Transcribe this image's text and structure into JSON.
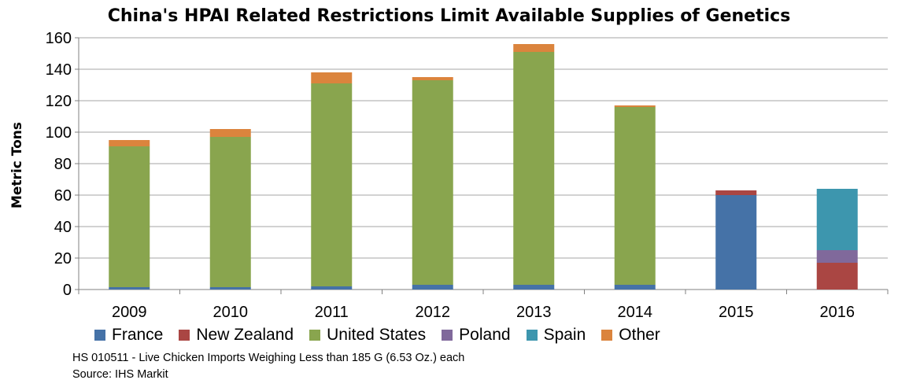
{
  "chart_data": {
    "type": "bar",
    "stacked": true,
    "title": "China's HPAI Related Restrictions Limit Available Supplies of Genetics",
    "ylabel": "Metric Tons",
    "xlabel": "",
    "ylim": [
      0,
      160
    ],
    "yticks": [
      0,
      20,
      40,
      60,
      80,
      100,
      120,
      140,
      160
    ],
    "grid": true,
    "legend_position": "bottom",
    "categories": [
      "2009",
      "2010",
      "2011",
      "2012",
      "2013",
      "2014",
      "2015",
      "2016"
    ],
    "series": [
      {
        "name": "France",
        "color": "#4572A7",
        "values": [
          1.5,
          1.5,
          2,
          3,
          3,
          3,
          60,
          0
        ]
      },
      {
        "name": "New Zealand",
        "color": "#AA4643",
        "values": [
          0,
          0,
          0,
          0,
          0,
          0,
          3,
          17
        ]
      },
      {
        "name": "United States",
        "color": "#89A54E",
        "values": [
          89.5,
          95.5,
          129,
          130,
          148,
          113,
          0,
          0
        ]
      },
      {
        "name": "Poland",
        "color": "#80699B",
        "values": [
          0,
          0,
          0,
          0,
          0,
          0,
          0,
          8
        ]
      },
      {
        "name": "Spain",
        "color": "#3D96AE",
        "values": [
          0,
          0,
          0,
          0,
          0,
          0,
          0,
          39
        ]
      },
      {
        "name": "Other",
        "color": "#DB843D",
        "values": [
          4,
          5,
          7,
          2,
          5,
          1,
          0,
          0
        ]
      }
    ]
  },
  "footnote": "HS 010511 - Live Chicken Imports Weighing Less than 185 G (6.53 Oz.) each",
  "source": "Source: IHS Markit"
}
